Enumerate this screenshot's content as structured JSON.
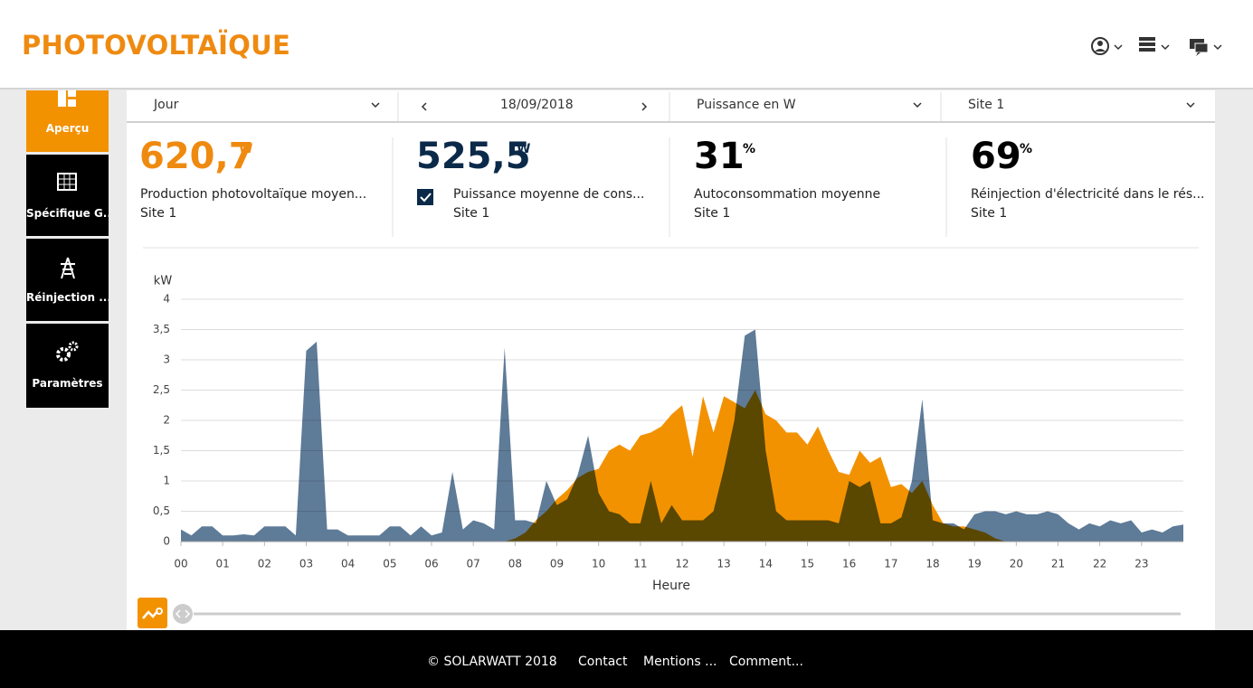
{
  "header": {
    "title": "PHOTOVOLTAÏQUE"
  },
  "sidebar": {
    "items": [
      "Aperçu",
      "Spécifique G...",
      "Réinjection ...",
      "Paramètres"
    ]
  },
  "filters": {
    "period": "Jour",
    "date": "18/09/2018",
    "measure": "Puissance en W",
    "site": "Site 1"
  },
  "kpis": [
    {
      "value": "620,7",
      "unit": "W",
      "label": "Production photovoltaïque moyen...",
      "site": "Site 1"
    },
    {
      "value": "525,5",
      "unit": "W",
      "label": "Puissance moyenne de cons...",
      "site": "Site 1"
    },
    {
      "value": "31",
      "unit": "%",
      "label": "Autoconsommation moyenne",
      "site": "Site 1"
    },
    {
      "value": "69",
      "unit": "%",
      "label": "Réinjection d'électricité dans le rés...",
      "site": "Site 1"
    }
  ],
  "chart_data": {
    "type": "area",
    "y_label": "kW",
    "x_label": "Heure",
    "x": [
      0,
      0.25,
      0.5,
      0.75,
      1,
      1.25,
      1.5,
      1.75,
      2,
      2.25,
      2.5,
      2.75,
      3,
      3.25,
      3.5,
      3.75,
      4,
      4.25,
      4.5,
      4.75,
      5,
      5.25,
      5.5,
      5.75,
      6,
      6.25,
      6.5,
      6.75,
      7,
      7.25,
      7.5,
      7.75,
      8,
      8.25,
      8.5,
      8.75,
      9,
      9.25,
      9.5,
      9.75,
      10,
      10.25,
      10.5,
      10.75,
      11,
      11.25,
      11.5,
      11.75,
      12,
      12.25,
      12.5,
      12.75,
      13,
      13.25,
      13.5,
      13.75,
      14,
      14.25,
      14.5,
      14.75,
      15,
      15.25,
      15.5,
      15.75,
      16,
      16.25,
      16.5,
      16.75,
      17,
      17.25,
      17.5,
      17.75,
      18,
      18.25,
      18.5,
      18.75,
      19,
      19.25,
      19.5,
      19.75,
      20,
      20.25,
      20.5,
      20.75,
      21,
      21.25,
      21.5,
      21.75,
      22,
      22.25,
      22.5,
      22.75,
      23,
      23.25,
      23.5,
      23.75,
      24
    ],
    "xlim": [
      0,
      24
    ],
    "xticks": [
      {
        "value": 0,
        "label": "00"
      },
      {
        "value": 1,
        "label": "01"
      },
      {
        "value": 2,
        "label": "02"
      },
      {
        "value": 3,
        "label": "03"
      },
      {
        "value": 4,
        "label": "04"
      },
      {
        "value": 5,
        "label": "05"
      },
      {
        "value": 6,
        "label": "06"
      },
      {
        "value": 7,
        "label": "07"
      },
      {
        "value": 8,
        "label": "08"
      },
      {
        "value": 9,
        "label": "09"
      },
      10,
      11,
      12,
      13,
      14,
      15,
      16,
      17,
      18,
      19,
      20,
      21,
      22,
      23
    ],
    "ylim": [
      0,
      4
    ],
    "yticks": [
      0,
      {
        "value": 0.5,
        "label": "0,5"
      },
      1,
      {
        "value": 1.5,
        "label": "1,5"
      },
      2,
      {
        "value": 2.5,
        "label": "2,5"
      },
      3,
      {
        "value": 3.5,
        "label": "3,5"
      },
      4
    ],
    "grid": true,
    "series": [
      {
        "color": "#f39200",
        "values": [
          0,
          0,
          0,
          0,
          0,
          0,
          0,
          0,
          0,
          0,
          0,
          0,
          0,
          0,
          0,
          0,
          0,
          0,
          0,
          0,
          0,
          0,
          0,
          0,
          0,
          0,
          0,
          0,
          0,
          0,
          0,
          0,
          0.05,
          0.15,
          0.35,
          0.5,
          0.7,
          0.85,
          1.05,
          1.15,
          1.2,
          1.5,
          1.6,
          1.5,
          1.75,
          1.8,
          1.9,
          2.1,
          2.25,
          1.4,
          2.4,
          1.8,
          2.4,
          2.3,
          2.2,
          2.5,
          2.1,
          2.0,
          1.8,
          1.8,
          1.6,
          1.9,
          1.5,
          1.15,
          1.1,
          1.5,
          1.3,
          1.4,
          0.9,
          0.95,
          0.8,
          1.0,
          0.6,
          0.3,
          0.25,
          0.25,
          0.2,
          0.15,
          0.05,
          0,
          0,
          0,
          0,
          0,
          0,
          0,
          0,
          0,
          0,
          0,
          0,
          0,
          0,
          0,
          0,
          0,
          0
        ]
      },
      {
        "color": "#5e7b98",
        "values": [
          0.2,
          0.1,
          0.25,
          0.25,
          0.1,
          0.1,
          0.12,
          0.1,
          0.25,
          0.25,
          0.25,
          0.1,
          3.15,
          3.3,
          0.2,
          0.2,
          0.1,
          0.1,
          0.1,
          0.1,
          0.25,
          0.25,
          0.1,
          0.25,
          0.1,
          0.15,
          1.15,
          0.2,
          0.35,
          0.3,
          0.2,
          3.2,
          0.35,
          0.35,
          0.3,
          1.0,
          0.6,
          0.7,
          1.1,
          1.75,
          0.8,
          0.5,
          0.45,
          0.3,
          0.3,
          1.0,
          0.3,
          0.6,
          0.35,
          0.35,
          0.35,
          0.5,
          1.2,
          2.0,
          3.4,
          3.5,
          1.5,
          0.5,
          0.35,
          0.35,
          0.35,
          0.35,
          0.35,
          0.3,
          1.0,
          0.9,
          1.0,
          0.3,
          0.3,
          0.4,
          1.0,
          2.35,
          0.35,
          0.3,
          0.3,
          0.2,
          0.45,
          0.5,
          0.5,
          0.45,
          0.5,
          0.45,
          0.45,
          0.5,
          0.45,
          0.3,
          0.2,
          0.3,
          0.25,
          0.35,
          0.3,
          0.35,
          0.15,
          0.2,
          0.15,
          0.25,
          0.28
        ]
      }
    ]
  },
  "footer": {
    "copyright": "© SOLARWATT 2018",
    "links": [
      "Contact",
      "Mentions ...",
      "Comment..."
    ]
  }
}
